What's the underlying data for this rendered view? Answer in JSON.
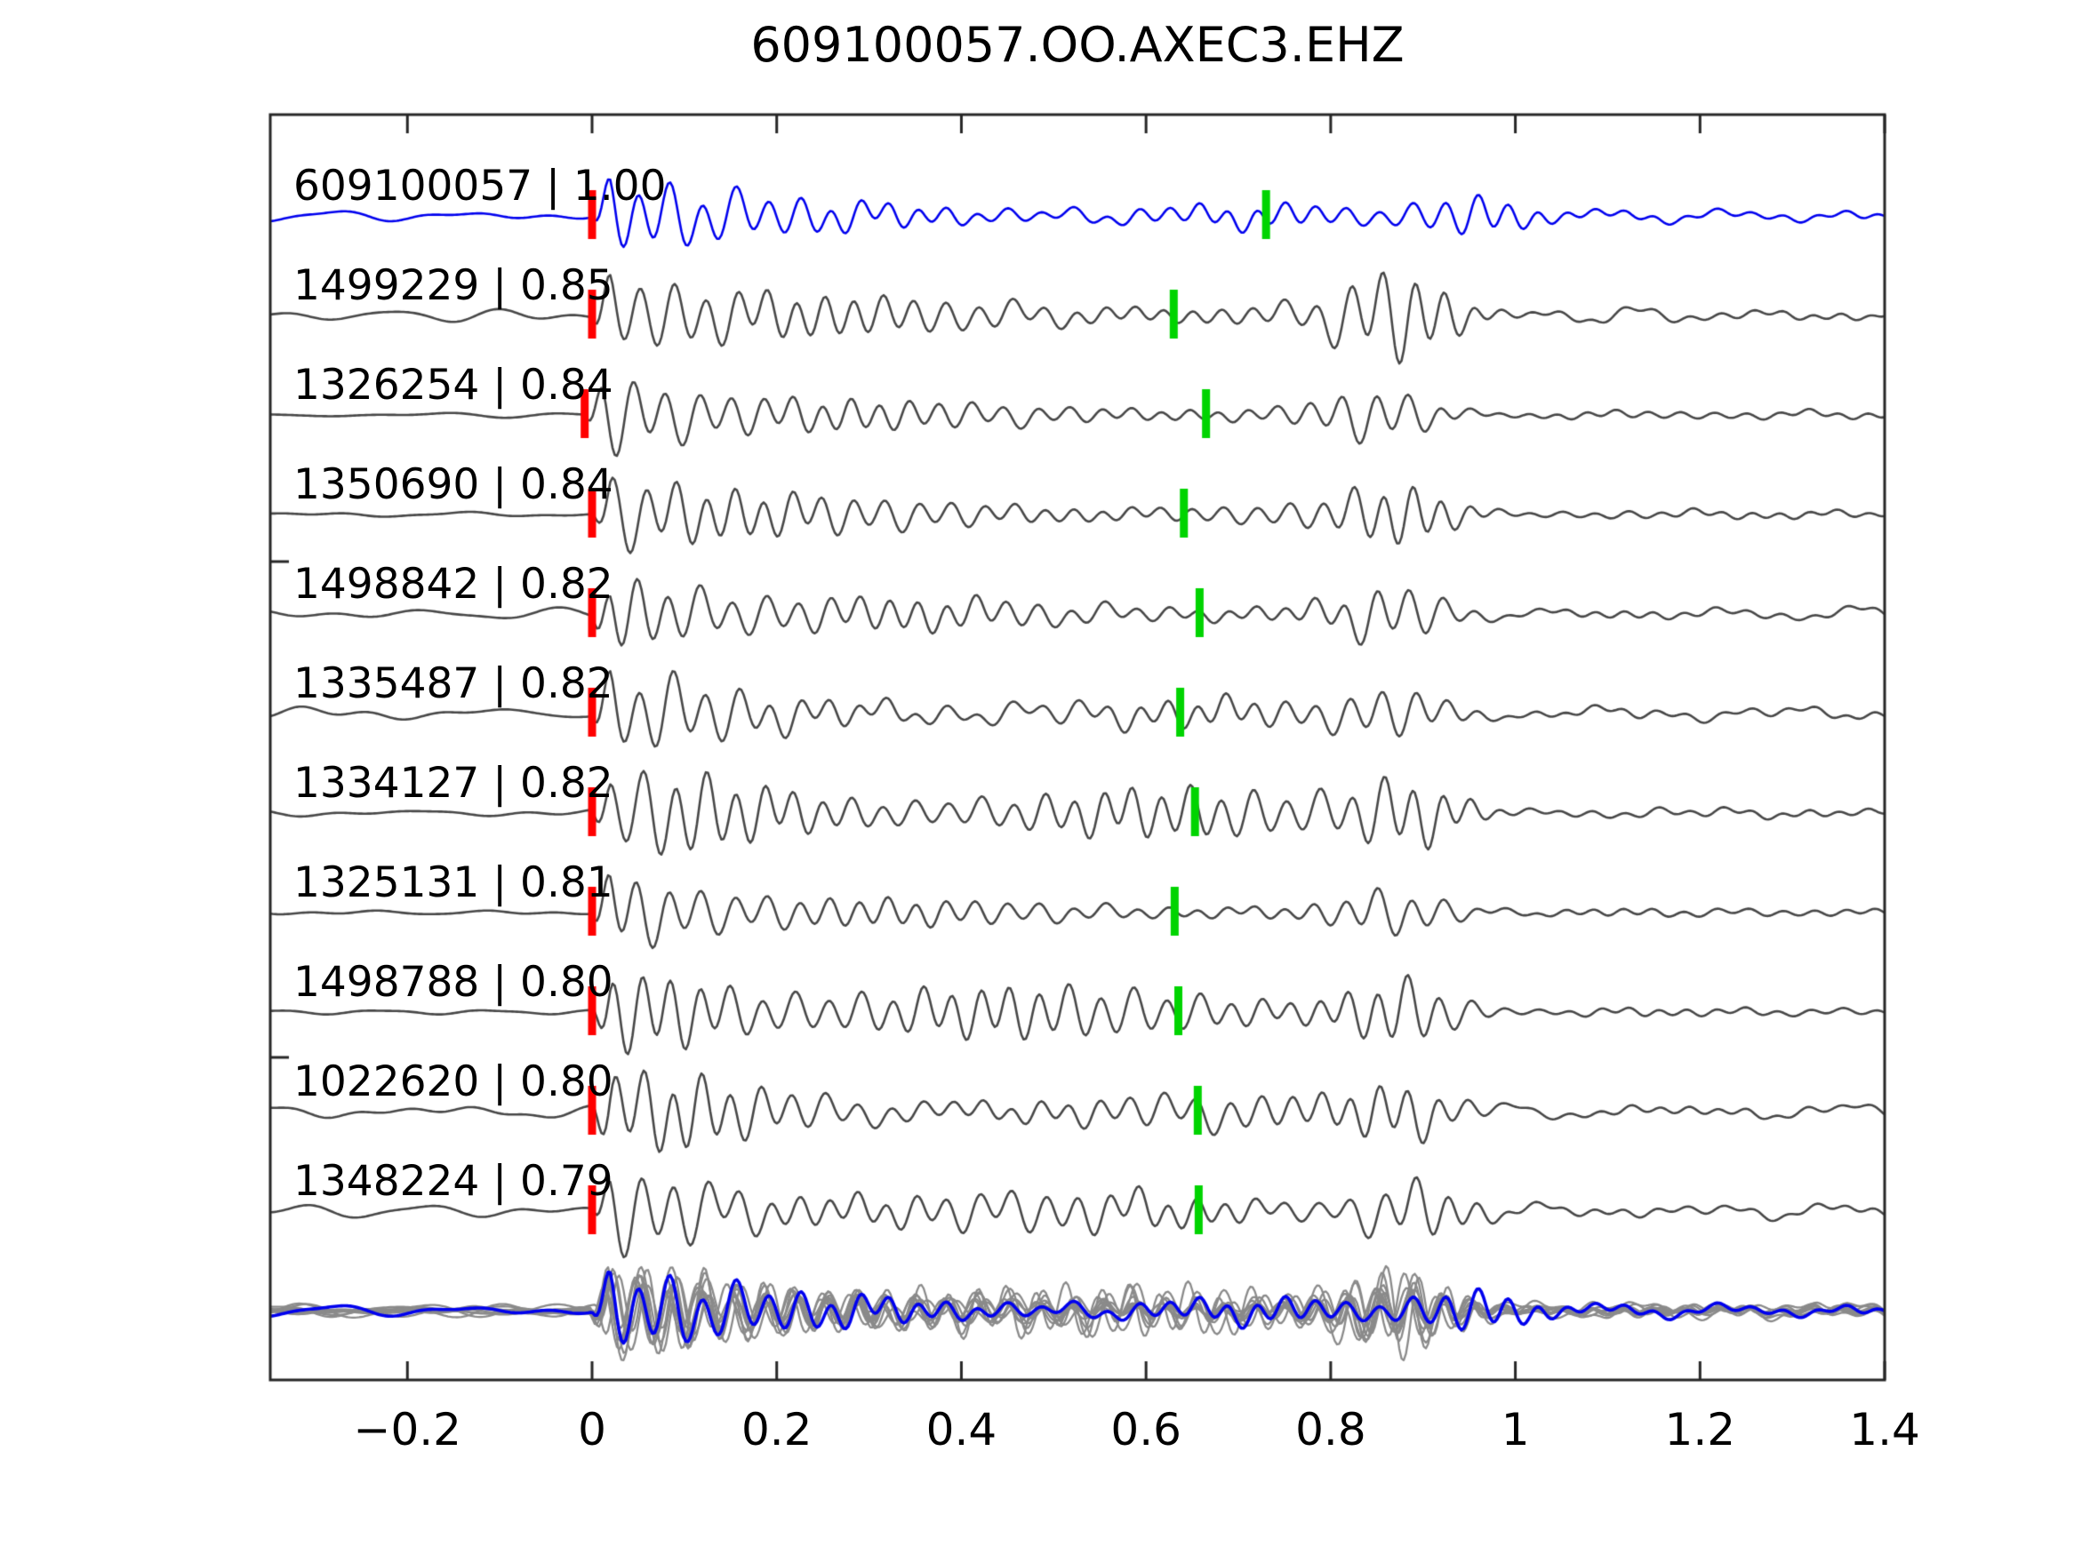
{
  "title": "609100057.OO.AXEC3.EHZ",
  "colors": {
    "template_trace": "#0000ee",
    "candidate_trace": "#474747",
    "stack_trace": "#8a8a8a",
    "new_pick_marker": "#ff0000",
    "template_pick_marker": "#00d400",
    "axis": "#262626",
    "text": "#000000",
    "background": "#ffffff"
  },
  "chart_data": {
    "type": "line",
    "kind": "seismic-template-correlation-alignment",
    "title": "609100057.OO.AXEC3.EHZ",
    "xlabel": "",
    "ylabel": "",
    "xlim": [
      -0.348,
      1.4
    ],
    "grid": false,
    "xticks": [
      "−0.2",
      "0",
      "0.2",
      "0.4",
      "0.6",
      "0.8",
      "1",
      "1.2",
      "1.4"
    ],
    "xtick_values": [
      -0.2,
      0,
      0.2,
      0.4,
      0.6,
      0.8,
      1.0,
      1.2,
      1.4
    ],
    "y_axis_visible": false,
    "marker_legend": {
      "red_tick": "aligned pick at t = 0",
      "green_tick": "original pick time per event"
    },
    "traces": [
      {
        "id": "609100057",
        "correlation": 1.0,
        "label": "609100057 | 1.00",
        "role": "template",
        "red_pick": 0.0,
        "green_pick": 0.73,
        "noise": 6.5,
        "onset": 48,
        "mid": 13,
        "late": 20,
        "late_t": 0.95
      },
      {
        "id": "1499229",
        "correlation": 0.85,
        "label": "1499229 | 0.85",
        "role": "candidate",
        "red_pick": 0.0,
        "green_pick": 0.63,
        "noise": 8,
        "onset": 55,
        "mid": 17,
        "late": 42,
        "late_t": 0.872
      },
      {
        "id": "1326254",
        "correlation": 0.84,
        "label": "1326254 | 0.84",
        "role": "candidate",
        "red_pick": -0.008,
        "green_pick": 0.665,
        "noise": 3,
        "onset": 55,
        "mid": 13,
        "late": 22,
        "late_t": 0.86
      },
      {
        "id": "1350690",
        "correlation": 0.84,
        "label": "1350690 | 0.84",
        "role": "candidate",
        "red_pick": 0.0,
        "green_pick": 0.641,
        "noise": 3,
        "onset": 52,
        "mid": 15,
        "late": 26,
        "late_t": 0.875
      },
      {
        "id": "1498842",
        "correlation": 0.82,
        "label": "1498842 | 0.82",
        "role": "candidate",
        "red_pick": 0.0,
        "green_pick": 0.658,
        "noise": 7,
        "onset": 52,
        "mid": 15,
        "late": 24,
        "late_t": 0.87
      },
      {
        "id": "1335487",
        "correlation": 0.82,
        "label": "1335487 | 0.82",
        "role": "candidate",
        "red_pick": 0.0,
        "green_pick": 0.637,
        "noise": 8,
        "onset": 54,
        "mid": 14,
        "late": 22,
        "late_t": 0.87
      },
      {
        "id": "1334127",
        "correlation": 0.82,
        "label": "1334127 | 0.82",
        "role": "candidate",
        "red_pick": 0.0,
        "green_pick": 0.653,
        "noise": 4,
        "onset": 56,
        "mid": 26,
        "late": 32,
        "late_t": 0.88
      },
      {
        "id": "1325131",
        "correlation": 0.81,
        "label": "1325131 | 0.81",
        "role": "candidate",
        "red_pick": 0.0,
        "green_pick": 0.631,
        "noise": 3,
        "onset": 54,
        "mid": 12,
        "late": 20,
        "late_t": 0.87
      },
      {
        "id": "1498788",
        "correlation": 0.8,
        "label": "1498788 | 0.80",
        "role": "candidate",
        "red_pick": 0.0,
        "green_pick": 0.635,
        "noise": 2.5,
        "onset": 58,
        "mid": 27,
        "late": 30,
        "late_t": 0.88
      },
      {
        "id": "1022620",
        "correlation": 0.8,
        "label": "1022620 | 0.80",
        "role": "candidate",
        "red_pick": 0.0,
        "green_pick": 0.656,
        "noise": 8,
        "onset": 56,
        "mid": 18,
        "late": 25,
        "late_t": 0.88
      },
      {
        "id": "1348224",
        "correlation": 0.79,
        "label": "1348224 | 0.79",
        "role": "candidate",
        "red_pick": 0.0,
        "green_pick": 0.657,
        "noise": 8,
        "onset": 58,
        "mid": 20,
        "late": 27,
        "late_t": 0.89
      }
    ],
    "stack_row": {
      "description": "all candidate traces overlaid in gray with blue template on top",
      "gray_trace_count": 10,
      "has_template_overlay": true
    }
  }
}
